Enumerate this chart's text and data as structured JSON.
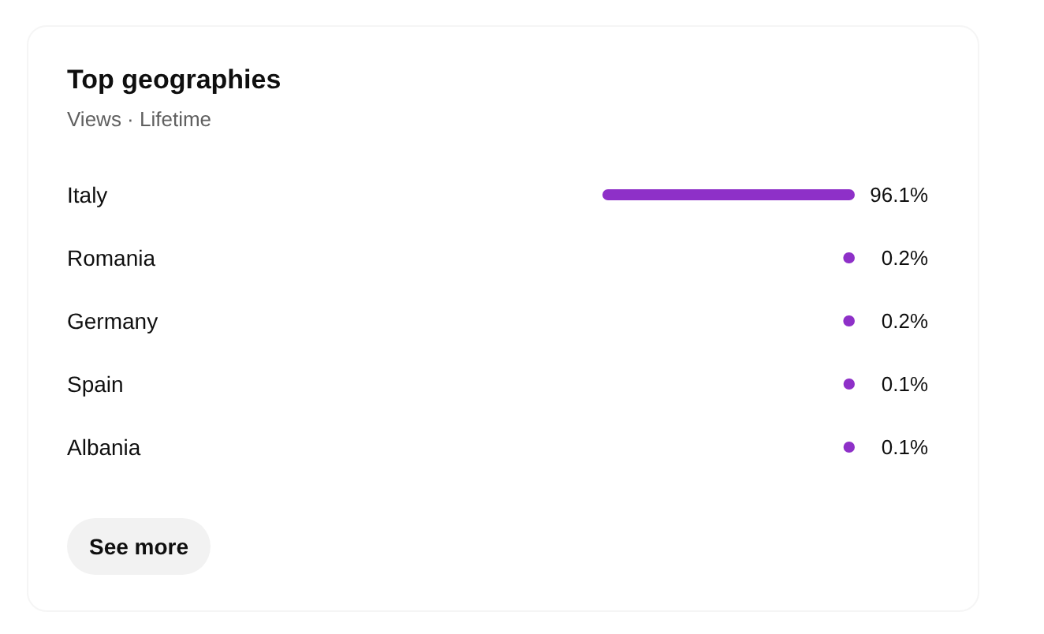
{
  "chart_data": {
    "type": "bar",
    "orientation": "horizontal",
    "title": "Top geographies",
    "subtitle": "Views · Lifetime",
    "categories": [
      "Italy",
      "Romania",
      "Germany",
      "Spain",
      "Albania"
    ],
    "values": [
      96.1,
      0.2,
      0.2,
      0.1,
      0.1
    ],
    "value_labels": [
      "96.1%",
      "0.2%",
      "0.2%",
      "0.1%",
      "0.1%"
    ],
    "color": "#8e30c8",
    "annotations": [
      "See more"
    ]
  }
}
